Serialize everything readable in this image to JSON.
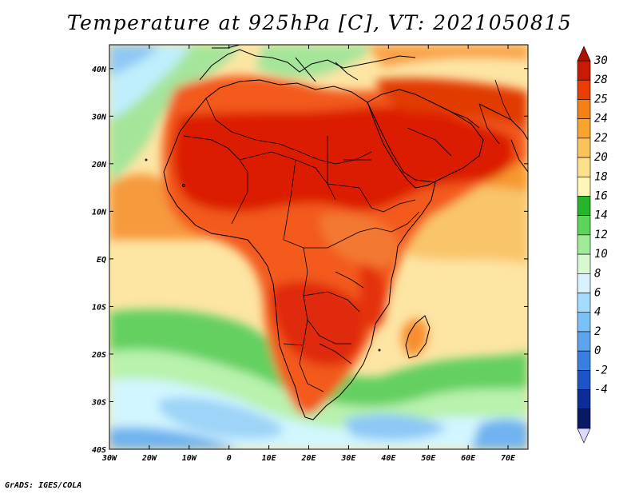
{
  "title": "Temperature at 925hPa [C], VT: 2021050815",
  "credit": "GrADS: IGES/COLA",
  "map": {
    "region": "Africa and surroundings",
    "lon_range": [
      -30,
      75
    ],
    "lat_range": [
      -40,
      45
    ],
    "lon_ticks": [
      "30W",
      "20W",
      "10W",
      "0",
      "10E",
      "20E",
      "30E",
      "40E",
      "50E",
      "60E",
      "70E"
    ],
    "lat_ticks": [
      "40N",
      "30N",
      "20N",
      "10N",
      "EQ",
      "10S",
      "20S",
      "30S",
      "40S"
    ]
  },
  "colorbar": {
    "labels": [
      "30",
      "28",
      "25",
      "24",
      "22",
      "20",
      "18",
      "16",
      "14",
      "12",
      "10",
      "8",
      "6",
      "4",
      "2",
      "0",
      "-2",
      "-4"
    ],
    "colors": [
      "#c81a00",
      "#e83f00",
      "#f57f14",
      "#f9a42c",
      "#fbc25a",
      "#fde08c",
      "#fff5b8",
      "#25b52a",
      "#5dd35c",
      "#a0eb97",
      "#d8f8d0",
      "#d8f3ff",
      "#a4dcff",
      "#7bc1f7",
      "#5da3ee",
      "#3a7fe0",
      "#1d54c7",
      "#0d2d96",
      "#081a66"
    ]
  },
  "colors": {
    "c_hot": "#dd2200",
    "c_warm": "#f2561a",
    "c_orange": "#f78e2d",
    "c_yellow": "#f9c46a",
    "c_pale": "#fbe29d",
    "c_green": "#6fd36a",
    "c_lightgreen": "#b4f0a8",
    "c_lightblue": "#c8ecff",
    "c_blue": "#8ec8f5",
    "c_darkblue": "#5ea7ee"
  }
}
